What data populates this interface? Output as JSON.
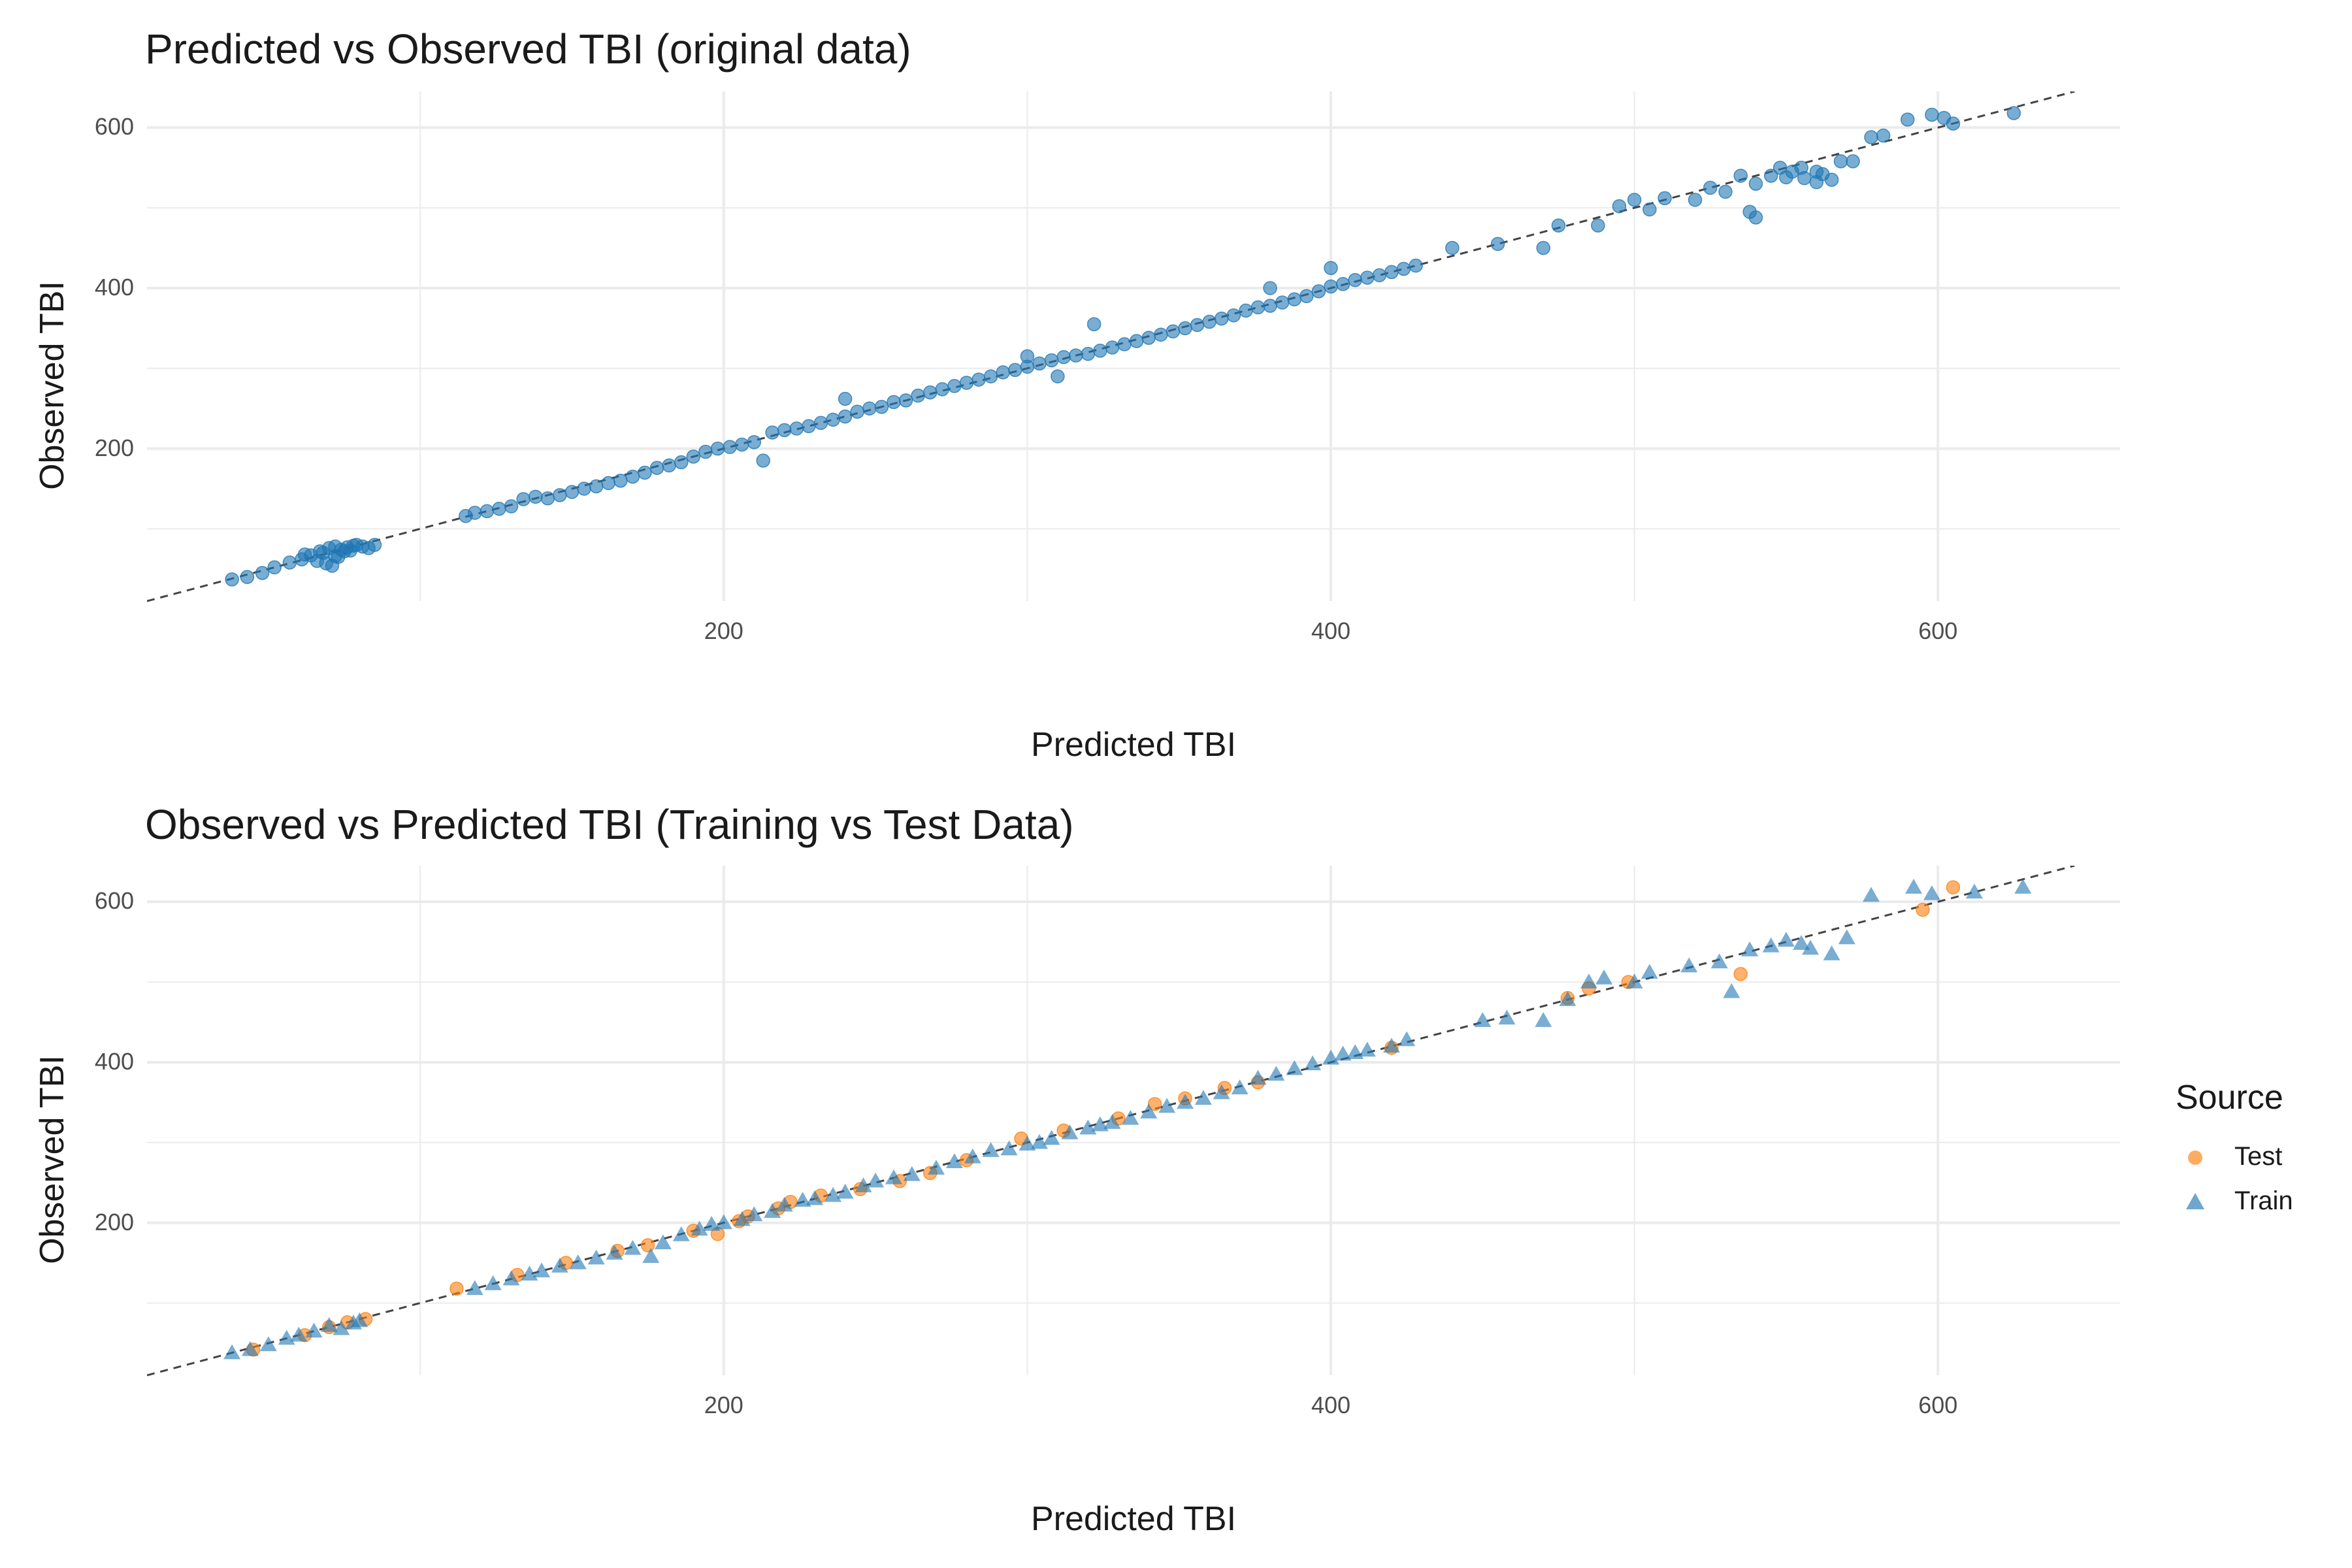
{
  "colors": {
    "blue": "#1f77b4",
    "orange": "#ff7f0e",
    "grid": "#ebebeb",
    "ref_line": "#444444",
    "tick_text": "#4d4d4d"
  },
  "chart_data": [
    {
      "type": "scatter",
      "title": "Predicted vs Observed TBI (original data)",
      "xlabel": "Predicted TBI",
      "ylabel": "Observed TBI",
      "xlim": [
        10,
        660
      ],
      "ylim": [
        10,
        645
      ],
      "x_ticks": [
        200,
        400,
        600
      ],
      "y_ticks": [
        200,
        400,
        600
      ],
      "grid": true,
      "reference_line": "y = x",
      "series": [
        {
          "marker": "circle",
          "color": "#1f77b4",
          "points": [
            [
              38,
              37
            ],
            [
              43,
              40
            ],
            [
              48,
              45
            ],
            [
              52,
              52
            ],
            [
              57,
              58
            ],
            [
              61,
              62
            ],
            [
              64,
              67
            ],
            [
              67,
              72
            ],
            [
              70,
              76
            ],
            [
              72,
              78
            ],
            [
              74,
              74
            ],
            [
              76,
              77
            ],
            [
              78,
              79
            ],
            [
              62,
              68
            ],
            [
              66,
              60
            ],
            [
              69,
              57
            ],
            [
              71,
              54
            ],
            [
              73,
              65
            ],
            [
              75,
              72
            ],
            [
              79,
              80
            ],
            [
              81,
              78
            ],
            [
              83,
              76
            ],
            [
              85,
              80
            ],
            [
              68,
              70
            ],
            [
              72,
              66
            ],
            [
              77,
              73
            ],
            [
              115,
              116
            ],
            [
              118,
              120
            ],
            [
              122,
              122
            ],
            [
              126,
              125
            ],
            [
              130,
              128
            ],
            [
              134,
              137
            ],
            [
              138,
              140
            ],
            [
              142,
              138
            ],
            [
              146,
              142
            ],
            [
              150,
              146
            ],
            [
              154,
              150
            ],
            [
              158,
              153
            ],
            [
              162,
              157
            ],
            [
              166,
              160
            ],
            [
              170,
              165
            ],
            [
              174,
              170
            ],
            [
              178,
              176
            ],
            [
              182,
              179
            ],
            [
              186,
              183
            ],
            [
              190,
              190
            ],
            [
              194,
              196
            ],
            [
              198,
              200
            ],
            [
              202,
              202
            ],
            [
              206,
              205
            ],
            [
              210,
              208
            ],
            [
              213,
              185
            ],
            [
              216,
              220
            ],
            [
              220,
              223
            ],
            [
              224,
              225
            ],
            [
              228,
              228
            ],
            [
              232,
              232
            ],
            [
              236,
              236
            ],
            [
              240,
              240
            ],
            [
              244,
              246
            ],
            [
              248,
              250
            ],
            [
              252,
              252
            ],
            [
              256,
              258
            ],
            [
              260,
              260
            ],
            [
              264,
              266
            ],
            [
              268,
              270
            ],
            [
              272,
              274
            ],
            [
              276,
              278
            ],
            [
              280,
              282
            ],
            [
              284,
              286
            ],
            [
              288,
              290
            ],
            [
              292,
              295
            ],
            [
              296,
              298
            ],
            [
              300,
              302
            ],
            [
              304,
              306
            ],
            [
              308,
              310
            ],
            [
              312,
              314
            ],
            [
              316,
              316
            ],
            [
              320,
              318
            ],
            [
              324,
              322
            ],
            [
              328,
              326
            ],
            [
              332,
              330
            ],
            [
              336,
              334
            ],
            [
              340,
              338
            ],
            [
              344,
              342
            ],
            [
              348,
              346
            ],
            [
              352,
              350
            ],
            [
              356,
              354
            ],
            [
              360,
              358
            ],
            [
              364,
              362
            ],
            [
              368,
              366
            ],
            [
              372,
              372
            ],
            [
              376,
              376
            ],
            [
              380,
              378
            ],
            [
              384,
              382
            ],
            [
              388,
              386
            ],
            [
              392,
              390
            ],
            [
              396,
              396
            ],
            [
              400,
              402
            ],
            [
              404,
              405
            ],
            [
              408,
              410
            ],
            [
              412,
              413
            ],
            [
              416,
              416
            ],
            [
              420,
              420
            ],
            [
              424,
              424
            ],
            [
              428,
              428
            ],
            [
              300,
              315
            ],
            [
              310,
              290
            ],
            [
              322,
              355
            ],
            [
              240,
              262
            ],
            [
              380,
              400
            ],
            [
              400,
              425
            ],
            [
              440,
              450
            ],
            [
              455,
              455
            ],
            [
              470,
              450
            ],
            [
              475,
              478
            ],
            [
              488,
              478
            ],
            [
              495,
              502
            ],
            [
              500,
              510
            ],
            [
              505,
              498
            ],
            [
              510,
              512
            ],
            [
              520,
              510
            ],
            [
              525,
              525
            ],
            [
              530,
              520
            ],
            [
              535,
              540
            ],
            [
              538,
              495
            ],
            [
              540,
              488
            ],
            [
              545,
              540
            ],
            [
              550,
              538
            ],
            [
              555,
              550
            ],
            [
              560,
              545
            ],
            [
              562,
              542
            ],
            [
              565,
              535
            ],
            [
              568,
              558
            ],
            [
              572,
              558
            ],
            [
              578,
              588
            ],
            [
              582,
              590
            ],
            [
              590,
              610
            ],
            [
              598,
              616
            ],
            [
              602,
              612
            ],
            [
              605,
              605
            ],
            [
              625,
              618
            ],
            [
              540,
              530
            ],
            [
              548,
              550
            ],
            [
              552,
              545
            ],
            [
              556,
              537
            ],
            [
              560,
              532
            ]
          ]
        }
      ]
    },
    {
      "type": "scatter",
      "title": "Observed vs Predicted TBI (Training vs Test Data)",
      "xlabel": "Predicted TBI",
      "ylabel": "Observed TBI",
      "xlim": [
        10,
        660
      ],
      "ylim": [
        10,
        645
      ],
      "x_ticks": [
        200,
        400,
        600
      ],
      "y_ticks": [
        200,
        400,
        600
      ],
      "grid": true,
      "reference_line": "y = x",
      "legend": {
        "title": "Source",
        "position": "right"
      },
      "series": [
        {
          "name": "Test",
          "marker": "circle",
          "color": "#ff7f0e",
          "points": [
            [
              45,
              42
            ],
            [
              62,
              60
            ],
            [
              70,
              70
            ],
            [
              76,
              76
            ],
            [
              82,
              80
            ],
            [
              112,
              118
            ],
            [
              132,
              135
            ],
            [
              148,
              150
            ],
            [
              165,
              165
            ],
            [
              175,
              172
            ],
            [
              190,
              190
            ],
            [
              198,
              186
            ],
            [
              205,
              202
            ],
            [
              208,
              208
            ],
            [
              218,
              218
            ],
            [
              222,
              226
            ],
            [
              232,
              234
            ],
            [
              245,
              242
            ],
            [
              258,
              252
            ],
            [
              268,
              262
            ],
            [
              280,
              278
            ],
            [
              298,
              305
            ],
            [
              312,
              315
            ],
            [
              330,
              330
            ],
            [
              342,
              348
            ],
            [
              352,
              355
            ],
            [
              365,
              368
            ],
            [
              376,
              375
            ],
            [
              420,
              418
            ],
            [
              478,
              480
            ],
            [
              485,
              492
            ],
            [
              498,
              500
            ],
            [
              535,
              510
            ],
            [
              595,
              590
            ],
            [
              605,
              618
            ]
          ]
        },
        {
          "name": "Train",
          "marker": "triangle",
          "color": "#1f77b4",
          "points": [
            [
              38,
              38
            ],
            [
              44,
              42
            ],
            [
              50,
              48
            ],
            [
              56,
              56
            ],
            [
              60,
              60
            ],
            [
              65,
              65
            ],
            [
              70,
              72
            ],
            [
              74,
              68
            ],
            [
              78,
              75
            ],
            [
              80,
              78
            ],
            [
              118,
              118
            ],
            [
              124,
              124
            ],
            [
              130,
              130
            ],
            [
              136,
              136
            ],
            [
              140,
              140
            ],
            [
              146,
              146
            ],
            [
              152,
              150
            ],
            [
              158,
              156
            ],
            [
              164,
              162
            ],
            [
              170,
              168
            ],
            [
              176,
              158
            ],
            [
              180,
              175
            ],
            [
              186,
              185
            ],
            [
              192,
              192
            ],
            [
              196,
              198
            ],
            [
              200,
              200
            ],
            [
              206,
              204
            ],
            [
              210,
              210
            ],
            [
              216,
              214
            ],
            [
              220,
              222
            ],
            [
              226,
              228
            ],
            [
              230,
              230
            ],
            [
              236,
              234
            ],
            [
              240,
              238
            ],
            [
              246,
              246
            ],
            [
              250,
              252
            ],
            [
              256,
              256
            ],
            [
              262,
              260
            ],
            [
              270,
              268
            ],
            [
              276,
              276
            ],
            [
              282,
              282
            ],
            [
              288,
              290
            ],
            [
              294,
              292
            ],
            [
              300,
              298
            ],
            [
              304,
              300
            ],
            [
              308,
              305
            ],
            [
              314,
              312
            ],
            [
              320,
              318
            ],
            [
              324,
              322
            ],
            [
              328,
              325
            ],
            [
              334,
              330
            ],
            [
              340,
              338
            ],
            [
              346,
              345
            ],
            [
              352,
              350
            ],
            [
              358,
              355
            ],
            [
              364,
              362
            ],
            [
              370,
              368
            ],
            [
              376,
              380
            ],
            [
              382,
              385
            ],
            [
              388,
              392
            ],
            [
              394,
              398
            ],
            [
              400,
              405
            ],
            [
              404,
              410
            ],
            [
              408,
              412
            ],
            [
              412,
              415
            ],
            [
              420,
              420
            ],
            [
              425,
              428
            ],
            [
              450,
              452
            ],
            [
              458,
              455
            ],
            [
              470,
              452
            ],
            [
              478,
              478
            ],
            [
              485,
              500
            ],
            [
              490,
              505
            ],
            [
              500,
              500
            ],
            [
              505,
              512
            ],
            [
              518,
              520
            ],
            [
              528,
              525
            ],
            [
              532,
              488
            ],
            [
              538,
              540
            ],
            [
              545,
              545
            ],
            [
              550,
              552
            ],
            [
              555,
              548
            ],
            [
              558,
              542
            ],
            [
              565,
              535
            ],
            [
              570,
              555
            ],
            [
              578,
              608
            ],
            [
              592,
              618
            ],
            [
              598,
              610
            ],
            [
              612,
              612
            ],
            [
              628,
              618
            ]
          ]
        }
      ]
    }
  ]
}
